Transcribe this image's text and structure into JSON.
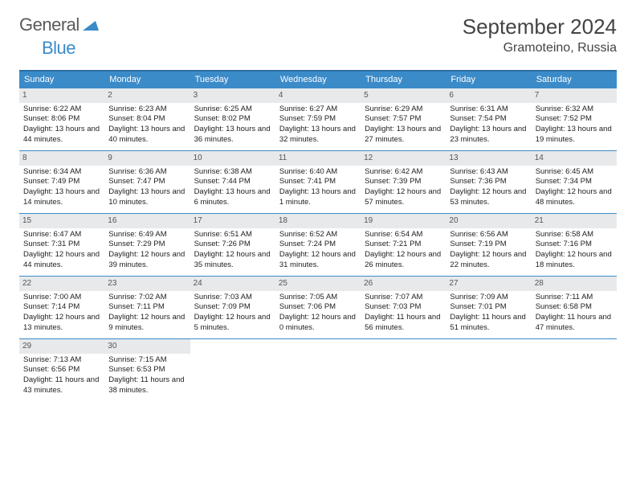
{
  "logo": {
    "textGeneral": "General",
    "textBlue": "Blue"
  },
  "title": "September 2024",
  "location": "Gramoteino, Russia",
  "weekdays": [
    "Sunday",
    "Monday",
    "Tuesday",
    "Wednesday",
    "Thursday",
    "Friday",
    "Saturday"
  ],
  "colors": {
    "headerBg": "#3b8bc9",
    "headerBorder": "#2a6da3",
    "cellBorder": "#3b8bc9",
    "dayNumBg": "#e7e9eb",
    "text": "#333"
  },
  "weeks": [
    [
      {
        "day": "1",
        "sunrise": "Sunrise: 6:22 AM",
        "sunset": "Sunset: 8:06 PM",
        "daylight": "Daylight: 13 hours and 44 minutes."
      },
      {
        "day": "2",
        "sunrise": "Sunrise: 6:23 AM",
        "sunset": "Sunset: 8:04 PM",
        "daylight": "Daylight: 13 hours and 40 minutes."
      },
      {
        "day": "3",
        "sunrise": "Sunrise: 6:25 AM",
        "sunset": "Sunset: 8:02 PM",
        "daylight": "Daylight: 13 hours and 36 minutes."
      },
      {
        "day": "4",
        "sunrise": "Sunrise: 6:27 AM",
        "sunset": "Sunset: 7:59 PM",
        "daylight": "Daylight: 13 hours and 32 minutes."
      },
      {
        "day": "5",
        "sunrise": "Sunrise: 6:29 AM",
        "sunset": "Sunset: 7:57 PM",
        "daylight": "Daylight: 13 hours and 27 minutes."
      },
      {
        "day": "6",
        "sunrise": "Sunrise: 6:31 AM",
        "sunset": "Sunset: 7:54 PM",
        "daylight": "Daylight: 13 hours and 23 minutes."
      },
      {
        "day": "7",
        "sunrise": "Sunrise: 6:32 AM",
        "sunset": "Sunset: 7:52 PM",
        "daylight": "Daylight: 13 hours and 19 minutes."
      }
    ],
    [
      {
        "day": "8",
        "sunrise": "Sunrise: 6:34 AM",
        "sunset": "Sunset: 7:49 PM",
        "daylight": "Daylight: 13 hours and 14 minutes."
      },
      {
        "day": "9",
        "sunrise": "Sunrise: 6:36 AM",
        "sunset": "Sunset: 7:47 PM",
        "daylight": "Daylight: 13 hours and 10 minutes."
      },
      {
        "day": "10",
        "sunrise": "Sunrise: 6:38 AM",
        "sunset": "Sunset: 7:44 PM",
        "daylight": "Daylight: 13 hours and 6 minutes."
      },
      {
        "day": "11",
        "sunrise": "Sunrise: 6:40 AM",
        "sunset": "Sunset: 7:41 PM",
        "daylight": "Daylight: 13 hours and 1 minute."
      },
      {
        "day": "12",
        "sunrise": "Sunrise: 6:42 AM",
        "sunset": "Sunset: 7:39 PM",
        "daylight": "Daylight: 12 hours and 57 minutes."
      },
      {
        "day": "13",
        "sunrise": "Sunrise: 6:43 AM",
        "sunset": "Sunset: 7:36 PM",
        "daylight": "Daylight: 12 hours and 53 minutes."
      },
      {
        "day": "14",
        "sunrise": "Sunrise: 6:45 AM",
        "sunset": "Sunset: 7:34 PM",
        "daylight": "Daylight: 12 hours and 48 minutes."
      }
    ],
    [
      {
        "day": "15",
        "sunrise": "Sunrise: 6:47 AM",
        "sunset": "Sunset: 7:31 PM",
        "daylight": "Daylight: 12 hours and 44 minutes."
      },
      {
        "day": "16",
        "sunrise": "Sunrise: 6:49 AM",
        "sunset": "Sunset: 7:29 PM",
        "daylight": "Daylight: 12 hours and 39 minutes."
      },
      {
        "day": "17",
        "sunrise": "Sunrise: 6:51 AM",
        "sunset": "Sunset: 7:26 PM",
        "daylight": "Daylight: 12 hours and 35 minutes."
      },
      {
        "day": "18",
        "sunrise": "Sunrise: 6:52 AM",
        "sunset": "Sunset: 7:24 PM",
        "daylight": "Daylight: 12 hours and 31 minutes."
      },
      {
        "day": "19",
        "sunrise": "Sunrise: 6:54 AM",
        "sunset": "Sunset: 7:21 PM",
        "daylight": "Daylight: 12 hours and 26 minutes."
      },
      {
        "day": "20",
        "sunrise": "Sunrise: 6:56 AM",
        "sunset": "Sunset: 7:19 PM",
        "daylight": "Daylight: 12 hours and 22 minutes."
      },
      {
        "day": "21",
        "sunrise": "Sunrise: 6:58 AM",
        "sunset": "Sunset: 7:16 PM",
        "daylight": "Daylight: 12 hours and 18 minutes."
      }
    ],
    [
      {
        "day": "22",
        "sunrise": "Sunrise: 7:00 AM",
        "sunset": "Sunset: 7:14 PM",
        "daylight": "Daylight: 12 hours and 13 minutes."
      },
      {
        "day": "23",
        "sunrise": "Sunrise: 7:02 AM",
        "sunset": "Sunset: 7:11 PM",
        "daylight": "Daylight: 12 hours and 9 minutes."
      },
      {
        "day": "24",
        "sunrise": "Sunrise: 7:03 AM",
        "sunset": "Sunset: 7:09 PM",
        "daylight": "Daylight: 12 hours and 5 minutes."
      },
      {
        "day": "25",
        "sunrise": "Sunrise: 7:05 AM",
        "sunset": "Sunset: 7:06 PM",
        "daylight": "Daylight: 12 hours and 0 minutes."
      },
      {
        "day": "26",
        "sunrise": "Sunrise: 7:07 AM",
        "sunset": "Sunset: 7:03 PM",
        "daylight": "Daylight: 11 hours and 56 minutes."
      },
      {
        "day": "27",
        "sunrise": "Sunrise: 7:09 AM",
        "sunset": "Sunset: 7:01 PM",
        "daylight": "Daylight: 11 hours and 51 minutes."
      },
      {
        "day": "28",
        "sunrise": "Sunrise: 7:11 AM",
        "sunset": "Sunset: 6:58 PM",
        "daylight": "Daylight: 11 hours and 47 minutes."
      }
    ],
    [
      {
        "day": "29",
        "sunrise": "Sunrise: 7:13 AM",
        "sunset": "Sunset: 6:56 PM",
        "daylight": "Daylight: 11 hours and 43 minutes."
      },
      {
        "day": "30",
        "sunrise": "Sunrise: 7:15 AM",
        "sunset": "Sunset: 6:53 PM",
        "daylight": "Daylight: 11 hours and 38 minutes."
      },
      null,
      null,
      null,
      null,
      null
    ]
  ]
}
